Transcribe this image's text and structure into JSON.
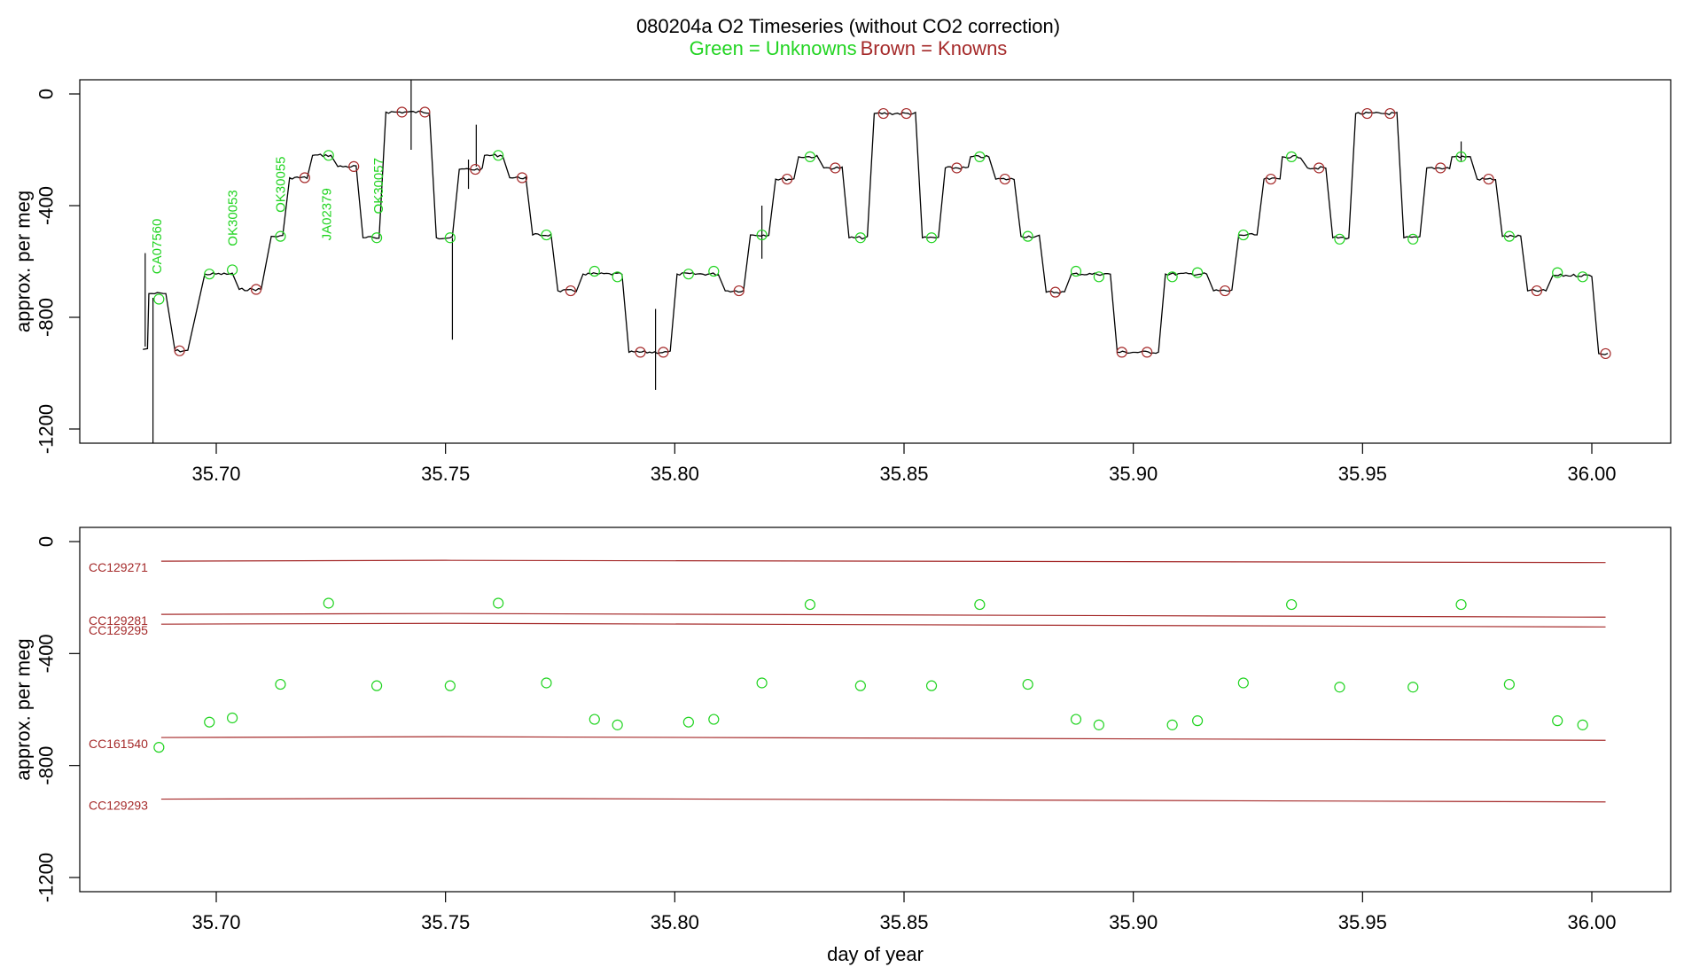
{
  "title": "080204a   O2 Timeseries (without CO2 correction)",
  "subtitle": {
    "green": "Green = Unknowns",
    "brown": "Brown = Knowns"
  },
  "colors": {
    "unknown": "#22d422",
    "known": "#a52a2a",
    "trace": "#000000"
  },
  "chart_data": [
    {
      "type": "line",
      "panel": "top",
      "title": "080204a   O2 Timeseries (without CO2 correction)",
      "xlabel": "",
      "ylabel": "approx. per meg",
      "xlim": [
        35.675,
        36.016
      ],
      "ylim": [
        -1250,
        50
      ],
      "xticks": [
        35.7,
        35.75,
        35.8,
        35.85,
        35.9,
        35.95,
        36.0
      ],
      "xtick_labels": [
        "35.70",
        "35.75",
        "35.80",
        "35.85",
        "35.90",
        "35.95",
        "36.00"
      ],
      "yticks": [
        0,
        -400,
        -800,
        -1200
      ],
      "ytick_labels": [
        "0",
        "-400",
        "-800",
        "-1200"
      ],
      "segments": [
        {
          "x0": 35.6853,
          "x1": 35.689,
          "y": -715,
          "kind": "unknown"
        },
        {
          "x0": 35.691,
          "x1": 35.6938,
          "y": -920,
          "kind": "known"
        },
        {
          "x0": 35.6975,
          "x1": 35.7035,
          "y": -645,
          "kind": "unknown"
        },
        {
          "x0": 35.705,
          "x1": 35.7098,
          "y": -700,
          "kind": "known"
        },
        {
          "x0": 35.712,
          "x1": 35.7145,
          "y": -510,
          "kind": "unknown"
        },
        {
          "x0": 35.716,
          "x1": 35.7198,
          "y": -300,
          "kind": "known"
        },
        {
          "x0": 35.721,
          "x1": 35.725,
          "y": -220,
          "kind": "unknown"
        },
        {
          "x0": 35.7265,
          "x1": 35.7305,
          "y": -260,
          "kind": "known"
        },
        {
          "x0": 35.732,
          "x1": 35.7355,
          "y": -515,
          "kind": "unknown"
        },
        {
          "x0": 35.737,
          "x1": 35.7465,
          "y": -65,
          "kind": "known"
        },
        {
          "x0": 35.748,
          "x1": 35.7515,
          "y": -515,
          "kind": "unknown"
        },
        {
          "x0": 35.753,
          "x1": 35.758,
          "y": -270,
          "kind": "known"
        },
        {
          "x0": 35.7585,
          "x1": 35.7625,
          "y": -220,
          "kind": "unknown"
        },
        {
          "x0": 35.764,
          "x1": 35.7675,
          "y": -300,
          "kind": "known"
        },
        {
          "x0": 35.769,
          "x1": 35.773,
          "y": -505,
          "kind": "unknown"
        },
        {
          "x0": 35.7745,
          "x1": 35.7785,
          "y": -705,
          "kind": "known"
        },
        {
          "x0": 35.78,
          "x1": 35.7885,
          "y": -645,
          "kind": "unknown"
        },
        {
          "x0": 35.79,
          "x1": 35.799,
          "y": -925,
          "kind": "known"
        },
        {
          "x0": 35.8005,
          "x1": 35.8095,
          "y": -645,
          "kind": "unknown"
        },
        {
          "x0": 35.811,
          "x1": 35.815,
          "y": -705,
          "kind": "known"
        },
        {
          "x0": 35.8165,
          "x1": 35.8205,
          "y": -505,
          "kind": "unknown"
        },
        {
          "x0": 35.822,
          "x1": 35.826,
          "y": -305,
          "kind": "known"
        },
        {
          "x0": 35.827,
          "x1": 35.831,
          "y": -225,
          "kind": "unknown"
        },
        {
          "x0": 35.8325,
          "x1": 35.8365,
          "y": -265,
          "kind": "known"
        },
        {
          "x0": 35.838,
          "x1": 35.842,
          "y": -515,
          "kind": "unknown"
        },
        {
          "x0": 35.8435,
          "x1": 35.8525,
          "y": -70,
          "kind": "known"
        },
        {
          "x0": 35.854,
          "x1": 35.8575,
          "y": -515,
          "kind": "unknown"
        },
        {
          "x0": 35.859,
          "x1": 35.864,
          "y": -265,
          "kind": "known"
        },
        {
          "x0": 35.8645,
          "x1": 35.8685,
          "y": -225,
          "kind": "unknown"
        },
        {
          "x0": 35.87,
          "x1": 35.874,
          "y": -305,
          "kind": "known"
        },
        {
          "x0": 35.8755,
          "x1": 35.8795,
          "y": -510,
          "kind": "unknown"
        },
        {
          "x0": 35.881,
          "x1": 35.885,
          "y": -710,
          "kind": "known"
        },
        {
          "x0": 35.8865,
          "x1": 35.895,
          "y": -645,
          "kind": "unknown"
        },
        {
          "x0": 35.8965,
          "x1": 35.9055,
          "y": -925,
          "kind": "known"
        },
        {
          "x0": 35.907,
          "x1": 35.916,
          "y": -645,
          "kind": "unknown"
        },
        {
          "x0": 35.9175,
          "x1": 35.9215,
          "y": -705,
          "kind": "known"
        },
        {
          "x0": 35.923,
          "x1": 35.927,
          "y": -505,
          "kind": "unknown"
        },
        {
          "x0": 35.9285,
          "x1": 35.932,
          "y": -305,
          "kind": "known"
        },
        {
          "x0": 35.9325,
          "x1": 35.9365,
          "y": -225,
          "kind": "unknown"
        },
        {
          "x0": 35.938,
          "x1": 35.942,
          "y": -265,
          "kind": "known"
        },
        {
          "x0": 35.9435,
          "x1": 35.947,
          "y": -515,
          "kind": "unknown"
        },
        {
          "x0": 35.9485,
          "x1": 35.9575,
          "y": -70,
          "kind": "known"
        },
        {
          "x0": 35.959,
          "x1": 35.9625,
          "y": -515,
          "kind": "unknown"
        },
        {
          "x0": 35.964,
          "x1": 35.969,
          "y": -265,
          "kind": "known"
        },
        {
          "x0": 35.9695,
          "x1": 35.9735,
          "y": -225,
          "kind": "unknown"
        },
        {
          "x0": 35.975,
          "x1": 35.979,
          "y": -305,
          "kind": "known"
        },
        {
          "x0": 35.9805,
          "x1": 35.9845,
          "y": -510,
          "kind": "unknown"
        },
        {
          "x0": 35.986,
          "x1": 35.99,
          "y": -705,
          "kind": "known"
        },
        {
          "x0": 35.9915,
          "x1": 36.0,
          "y": -650,
          "kind": "unknown"
        },
        {
          "x0": 36.0015,
          "x1": 36.0035,
          "y": -930,
          "kind": "known"
        }
      ],
      "spikes": [
        {
          "x": 35.6845,
          "y0": -905,
          "y1": -570
        },
        {
          "x": 35.6862,
          "y0": -1250,
          "y1": -730
        },
        {
          "x": 35.7425,
          "y0": -200,
          "y1": 50
        },
        {
          "x": 35.7515,
          "y0": -880,
          "y1": -515
        },
        {
          "x": 35.755,
          "y0": -340,
          "y1": -235
        },
        {
          "x": 35.7567,
          "y0": -260,
          "y1": -110
        },
        {
          "x": 35.7958,
          "y0": -1060,
          "y1": -770
        },
        {
          "x": 35.819,
          "y0": -590,
          "y1": -400
        },
        {
          "x": 35.9715,
          "y0": -240,
          "y1": -170
        }
      ],
      "markers_known": [
        {
          "x": 35.692,
          "y": -920
        },
        {
          "x": 35.7087,
          "y": -700
        },
        {
          "x": 35.7193,
          "y": -300
        },
        {
          "x": 35.73,
          "y": -260
        },
        {
          "x": 35.7405,
          "y": -65
        },
        {
          "x": 35.7455,
          "y": -65
        },
        {
          "x": 35.7565,
          "y": -270
        },
        {
          "x": 35.7667,
          "y": -300
        },
        {
          "x": 35.7773,
          "y": -705
        },
        {
          "x": 35.7925,
          "y": -925
        },
        {
          "x": 35.7975,
          "y": -925
        },
        {
          "x": 35.814,
          "y": -705
        },
        {
          "x": 35.8245,
          "y": -305
        },
        {
          "x": 35.835,
          "y": -265
        },
        {
          "x": 35.8455,
          "y": -70
        },
        {
          "x": 35.8505,
          "y": -70
        },
        {
          "x": 35.8615,
          "y": -265
        },
        {
          "x": 35.872,
          "y": -305
        },
        {
          "x": 35.883,
          "y": -710
        },
        {
          "x": 35.8975,
          "y": -925
        },
        {
          "x": 35.903,
          "y": -925
        },
        {
          "x": 35.92,
          "y": -705
        },
        {
          "x": 35.93,
          "y": -305
        },
        {
          "x": 35.9405,
          "y": -265
        },
        {
          "x": 35.951,
          "y": -70
        },
        {
          "x": 35.956,
          "y": -70
        },
        {
          "x": 35.967,
          "y": -265
        },
        {
          "x": 35.9775,
          "y": -305
        },
        {
          "x": 35.988,
          "y": -705
        },
        {
          "x": 36.003,
          "y": -930
        }
      ],
      "markers_unknown": [
        {
          "x": 35.6875,
          "y": -735
        },
        {
          "x": 35.6985,
          "y": -645
        },
        {
          "x": 35.7035,
          "y": -630
        },
        {
          "x": 35.714,
          "y": -510
        },
        {
          "x": 35.7245,
          "y": -220
        },
        {
          "x": 35.735,
          "y": -515
        },
        {
          "x": 35.751,
          "y": -515
        },
        {
          "x": 35.7615,
          "y": -220
        },
        {
          "x": 35.772,
          "y": -505
        },
        {
          "x": 35.7825,
          "y": -635
        },
        {
          "x": 35.7875,
          "y": -655
        },
        {
          "x": 35.803,
          "y": -645
        },
        {
          "x": 35.8085,
          "y": -635
        },
        {
          "x": 35.819,
          "y": -505
        },
        {
          "x": 35.8295,
          "y": -225
        },
        {
          "x": 35.8405,
          "y": -515
        },
        {
          "x": 35.856,
          "y": -515
        },
        {
          "x": 35.8665,
          "y": -225
        },
        {
          "x": 35.877,
          "y": -510
        },
        {
          "x": 35.8875,
          "y": -635
        },
        {
          "x": 35.8925,
          "y": -655
        },
        {
          "x": 35.9085,
          "y": -655
        },
        {
          "x": 35.914,
          "y": -640
        },
        {
          "x": 35.924,
          "y": -505
        },
        {
          "x": 35.9345,
          "y": -225
        },
        {
          "x": 35.945,
          "y": -520
        },
        {
          "x": 35.961,
          "y": -520
        },
        {
          "x": 35.9715,
          "y": -225
        },
        {
          "x": 35.982,
          "y": -510
        },
        {
          "x": 35.9925,
          "y": -640
        },
        {
          "x": 35.998,
          "y": -655
        }
      ],
      "sample_labels": [
        {
          "text": "CA07560",
          "x": 35.688,
          "y": -645
        },
        {
          "text": "OK30053",
          "x": 35.7045,
          "y": -545
        },
        {
          "text": "OK30055",
          "x": 35.715,
          "y": -425
        },
        {
          "text": "JA02379",
          "x": 35.725,
          "y": -525
        },
        {
          "text": "OK30057",
          "x": 35.7363,
          "y": -430
        }
      ]
    },
    {
      "type": "scatter",
      "panel": "bottom",
      "xlabel": "day of year",
      "ylabel": "approx. per meg",
      "xlim": [
        35.675,
        36.016
      ],
      "ylim": [
        -1250,
        50
      ],
      "xticks": [
        35.7,
        35.75,
        35.8,
        35.85,
        35.9,
        35.95,
        36.0
      ],
      "xtick_labels": [
        "35.70",
        "35.75",
        "35.80",
        "35.85",
        "35.90",
        "35.95",
        "36.00"
      ],
      "yticks": [
        0,
        -400,
        -800,
        -1200
      ],
      "ytick_labels": [
        "0",
        "-400",
        "-800",
        "-1200"
      ],
      "reference_lines": [
        {
          "name": "CC129271",
          "x0": 35.688,
          "x1": 36.003,
          "y0": -70,
          "y1": -75
        },
        {
          "name": "CC129281",
          "x0": 35.688,
          "x1": 36.003,
          "y0": -260,
          "y1": -270
        },
        {
          "name": "CC129295",
          "x0": 35.688,
          "x1": 36.003,
          "y0": -295,
          "y1": -305
        },
        {
          "name": "CC161540",
          "x0": 35.688,
          "x1": 36.003,
          "y0": -700,
          "y1": -710
        },
        {
          "name": "CC129293",
          "x0": 35.688,
          "x1": 36.003,
          "y0": -920,
          "y1": -930
        }
      ],
      "points_unknown": [
        {
          "x": 35.6875,
          "y": -735
        },
        {
          "x": 35.6985,
          "y": -645
        },
        {
          "x": 35.7035,
          "y": -630
        },
        {
          "x": 35.714,
          "y": -510
        },
        {
          "x": 35.7245,
          "y": -220
        },
        {
          "x": 35.735,
          "y": -515
        },
        {
          "x": 35.751,
          "y": -515
        },
        {
          "x": 35.7615,
          "y": -220
        },
        {
          "x": 35.772,
          "y": -505
        },
        {
          "x": 35.7825,
          "y": -635
        },
        {
          "x": 35.7875,
          "y": -655
        },
        {
          "x": 35.803,
          "y": -645
        },
        {
          "x": 35.8085,
          "y": -635
        },
        {
          "x": 35.819,
          "y": -505
        },
        {
          "x": 35.8295,
          "y": -225
        },
        {
          "x": 35.8405,
          "y": -515
        },
        {
          "x": 35.856,
          "y": -515
        },
        {
          "x": 35.8665,
          "y": -225
        },
        {
          "x": 35.877,
          "y": -510
        },
        {
          "x": 35.8875,
          "y": -635
        },
        {
          "x": 35.8925,
          "y": -655
        },
        {
          "x": 35.9085,
          "y": -655
        },
        {
          "x": 35.914,
          "y": -640
        },
        {
          "x": 35.924,
          "y": -505
        },
        {
          "x": 35.9345,
          "y": -225
        },
        {
          "x": 35.945,
          "y": -520
        },
        {
          "x": 35.961,
          "y": -520
        },
        {
          "x": 35.9715,
          "y": -225
        },
        {
          "x": 35.982,
          "y": -510
        },
        {
          "x": 35.9925,
          "y": -640
        },
        {
          "x": 35.998,
          "y": -655
        }
      ]
    }
  ]
}
